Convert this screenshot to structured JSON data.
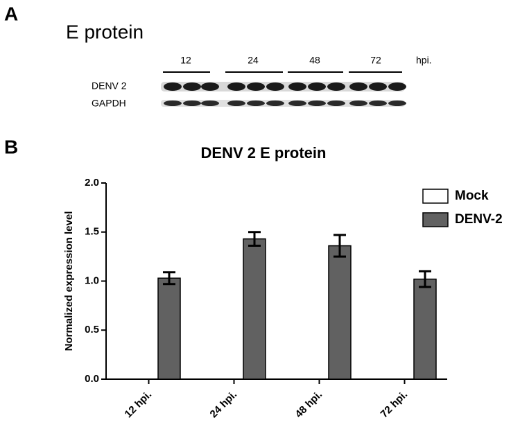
{
  "panel_a": {
    "label": "A",
    "title": "E protein",
    "timepoints": [
      "12",
      "24",
      "48",
      "72"
    ],
    "unit": "hpi.",
    "rows": [
      "DENV 2",
      "GAPDH"
    ]
  },
  "chart_data": {
    "type": "bar",
    "panel_label": "B",
    "title": "DENV 2 E protein",
    "y_label": "Normalized expression level",
    "categories": [
      "12 hpi.",
      "24 hpi.",
      "48 hpi.",
      "72 hpi."
    ],
    "series": [
      {
        "name": "Mock",
        "color": "#ffffff",
        "values": [
          null,
          null,
          null,
          null
        ]
      },
      {
        "name": "DENV-2",
        "color": "#616161",
        "values": [
          1.03,
          1.43,
          1.36,
          1.02
        ],
        "errors": [
          0.06,
          0.07,
          0.11,
          0.08
        ]
      }
    ],
    "ylim": [
      0,
      2
    ],
    "yticks": [
      {
        "value": 0,
        "label": "0.0"
      },
      {
        "value": 0.5,
        "label": "0.5"
      },
      {
        "value": 1,
        "label": "1.0"
      },
      {
        "value": 1.5,
        "label": "1.5"
      },
      {
        "value": 2,
        "label": "2.0"
      }
    ],
    "grid": false,
    "legend": "top-right"
  }
}
